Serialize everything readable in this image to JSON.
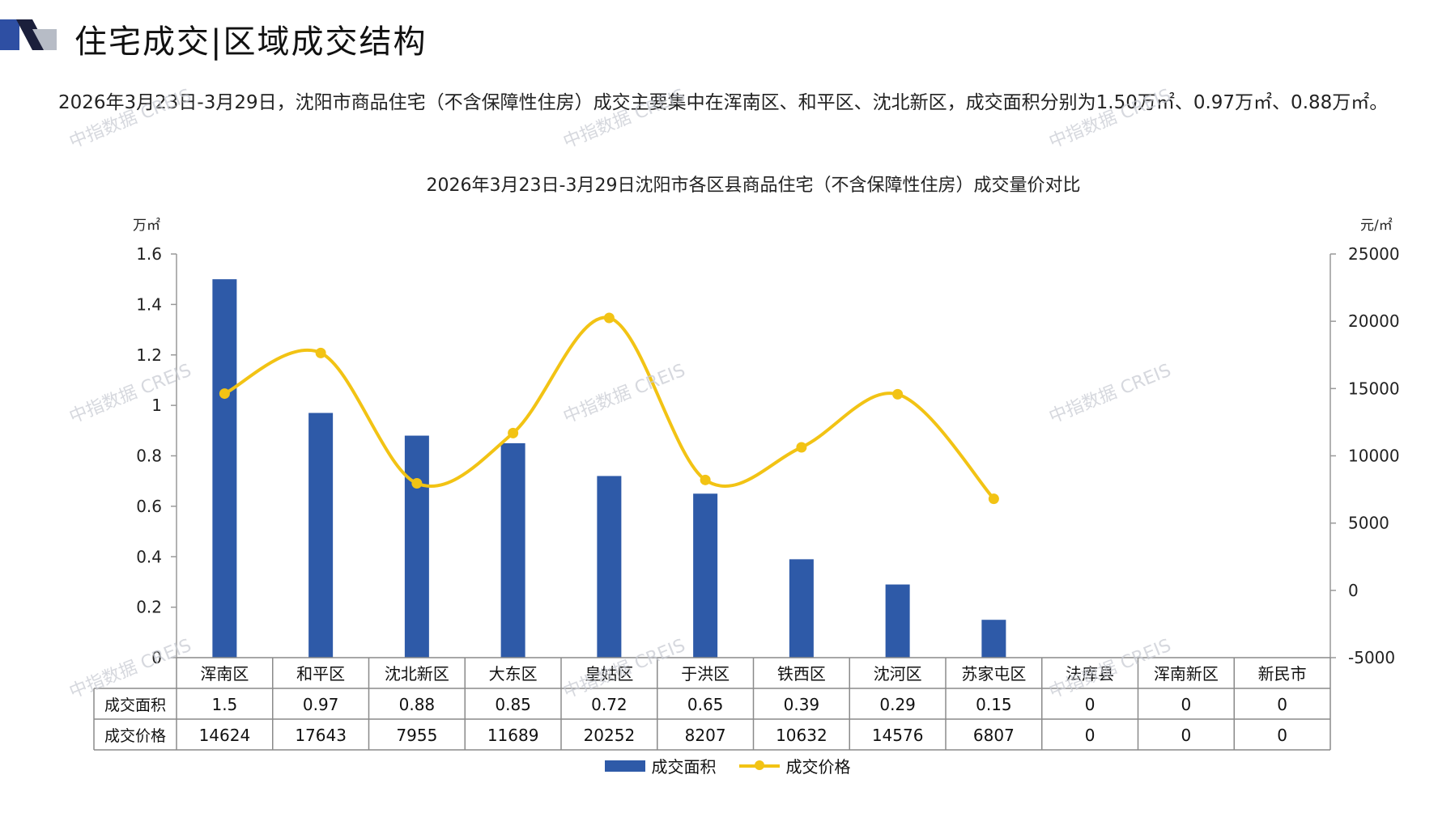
{
  "header": {
    "title": "住宅成交|区域成交结构",
    "logo_colors": [
      "#2e4fa3",
      "#1b1f3b",
      "#b7bcc6"
    ]
  },
  "description": "2026年3月23日-3月29日，沈阳市商品住宅（不含保障性住房）成交主要集中在浑南区、和平区、沈北新区，成交面积分别为1.50万㎡、0.97万㎡、0.88万㎡。",
  "watermark_text": "中指数据 CREIS",
  "chart_data": {
    "type": "bar+line",
    "title": "2026年3月23日-3月29日沈阳市各区县商品住宅（不含保障性住房）成交量价对比",
    "left_axis_unit": "万㎡",
    "right_axis_unit": "元/㎡",
    "left_ticks": [
      "0",
      "0.2",
      "0.4",
      "0.6",
      "0.8",
      "1",
      "1.2",
      "1.4",
      "1.6"
    ],
    "right_ticks": [
      "-5000",
      "0",
      "5000",
      "10000",
      "15000",
      "20000",
      "25000"
    ],
    "left_range": [
      0,
      1.6
    ],
    "right_range": [
      -5000,
      25000
    ],
    "categories": [
      "浑南区",
      "和平区",
      "沈北新区",
      "大东区",
      "皇姑区",
      "于洪区",
      "铁西区",
      "沈河区",
      "苏家屯区",
      "法库县",
      "浑南新区",
      "新民市"
    ],
    "series": [
      {
        "name": "成交面积",
        "type": "bar",
        "axis": "left",
        "color": "#2e5aa8",
        "values": [
          1.5,
          0.97,
          0.88,
          0.85,
          0.72,
          0.65,
          0.39,
          0.29,
          0.15,
          0,
          0,
          0
        ],
        "labels": [
          "1.5",
          "0.97",
          "0.88",
          "0.85",
          "0.72",
          "0.65",
          "0.39",
          "0.29",
          "0.15",
          "0",
          "0",
          "0"
        ]
      },
      {
        "name": "成交价格",
        "type": "line",
        "axis": "right",
        "color": "#f2c314",
        "smooth": true,
        "values": [
          14624,
          17643,
          7955,
          11689,
          20252,
          8207,
          10632,
          14576,
          6807,
          0,
          0,
          0
        ],
        "plotted_points": 9,
        "labels": [
          "14624",
          "17643",
          "7955",
          "11689",
          "20252",
          "8207",
          "10632",
          "14576",
          "6807",
          "0",
          "0",
          "0"
        ]
      }
    ],
    "legend": "bottom-center"
  }
}
